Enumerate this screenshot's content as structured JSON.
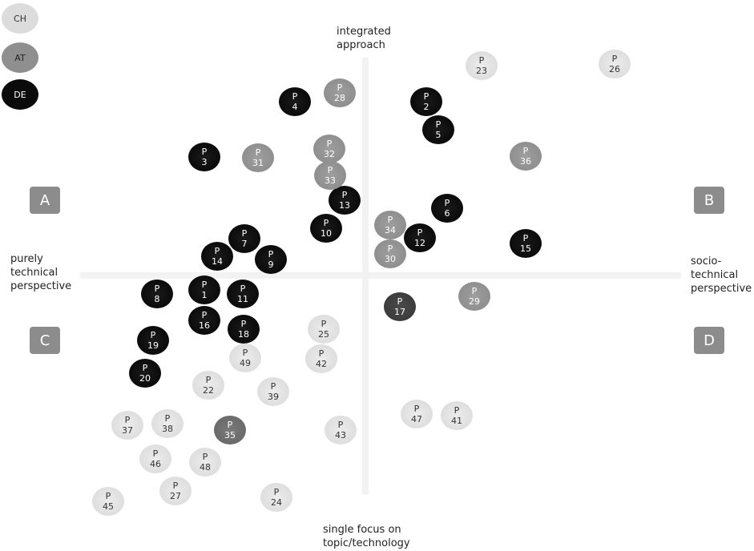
{
  "axes": {
    "top": "integrated\napproach",
    "bottom": "single focus on\ntopic/technology",
    "left": "purely\ntechnical\nperspective",
    "right": "socio-\ntechnical\nperspective"
  },
  "quadrants": {
    "a": "A",
    "b": "B",
    "c": "C",
    "d": "D"
  },
  "legend": [
    {
      "label": "CH",
      "group": "CH"
    },
    {
      "label": "AT",
      "group": "AT"
    },
    {
      "label": "DE",
      "group": "DE"
    }
  ],
  "node_prefix": "P",
  "nodes": [
    {
      "id": "1",
      "group": "DE"
    },
    {
      "id": "2",
      "group": "DE"
    },
    {
      "id": "3",
      "group": "DE"
    },
    {
      "id": "4",
      "group": "DE"
    },
    {
      "id": "5",
      "group": "DE"
    },
    {
      "id": "6",
      "group": "DE"
    },
    {
      "id": "7",
      "group": "DE"
    },
    {
      "id": "8",
      "group": "DE"
    },
    {
      "id": "9",
      "group": "DE"
    },
    {
      "id": "10",
      "group": "DE"
    },
    {
      "id": "11",
      "group": "DE"
    },
    {
      "id": "12",
      "group": "DE"
    },
    {
      "id": "13",
      "group": "DE"
    },
    {
      "id": "14",
      "group": "DE"
    },
    {
      "id": "15",
      "group": "DE"
    },
    {
      "id": "16",
      "group": "DE"
    },
    {
      "id": "17",
      "group": "DG"
    },
    {
      "id": "18",
      "group": "DE"
    },
    {
      "id": "19",
      "group": "DE"
    },
    {
      "id": "20",
      "group": "DE"
    },
    {
      "id": "22",
      "group": "CH"
    },
    {
      "id": "23",
      "group": "CH"
    },
    {
      "id": "24",
      "group": "CH"
    },
    {
      "id": "25",
      "group": "CH"
    },
    {
      "id": "26",
      "group": "CH"
    },
    {
      "id": "27",
      "group": "CH"
    },
    {
      "id": "28",
      "group": "AT"
    },
    {
      "id": "29",
      "group": "AT"
    },
    {
      "id": "30",
      "group": "AT"
    },
    {
      "id": "31",
      "group": "AT"
    },
    {
      "id": "32",
      "group": "AT"
    },
    {
      "id": "33",
      "group": "AT"
    },
    {
      "id": "34",
      "group": "AT"
    },
    {
      "id": "35",
      "group": "AT2"
    },
    {
      "id": "36",
      "group": "AT"
    },
    {
      "id": "37",
      "group": "CH"
    },
    {
      "id": "38",
      "group": "CH"
    },
    {
      "id": "39",
      "group": "CH"
    },
    {
      "id": "41",
      "group": "CH"
    },
    {
      "id": "42",
      "group": "CH"
    },
    {
      "id": "43",
      "group": "CH"
    },
    {
      "id": "45",
      "group": "CH"
    },
    {
      "id": "46",
      "group": "CH"
    },
    {
      "id": "47",
      "group": "CH"
    },
    {
      "id": "48",
      "group": "CH"
    },
    {
      "id": "49",
      "group": "CH"
    }
  ]
}
